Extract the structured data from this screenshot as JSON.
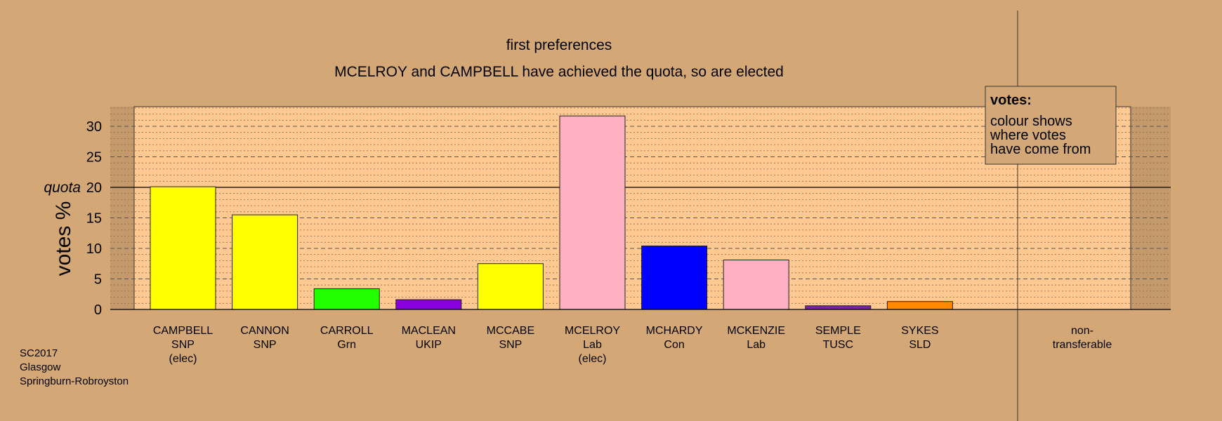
{
  "chart_data": {
    "type": "bar",
    "title": "first preferences",
    "subtitle": "MCELROY and CAMPBELL have achieved the quota, so are elected",
    "ylabel": "votes %",
    "ylim": [
      0,
      33.5
    ],
    "yticks": [
      0,
      5,
      10,
      15,
      20,
      25,
      30
    ],
    "quota": 20,
    "quota_label": "quota",
    "grid": true,
    "categories": [
      {
        "name": "CAMPBELL",
        "party": "SNP",
        "note": "(elec)",
        "value": 20.1,
        "color": "#ffff00"
      },
      {
        "name": "CANNON",
        "party": "SNP",
        "note": "",
        "value": 15.5,
        "color": "#ffff00"
      },
      {
        "name": "CARROLL",
        "party": "Grn",
        "note": "",
        "value": 3.4,
        "color": "#22ff00"
      },
      {
        "name": "MACLEAN",
        "party": "UKIP",
        "note": "",
        "value": 1.6,
        "color": "#8800dd"
      },
      {
        "name": "MCCABE",
        "party": "SNP",
        "note": "",
        "value": 7.5,
        "color": "#ffff00"
      },
      {
        "name": "MCELROY",
        "party": "Lab",
        "note": "(elec)",
        "value": 31.7,
        "color": "#ffb0c0"
      },
      {
        "name": "MCHARDY",
        "party": "Con",
        "note": "",
        "value": 10.4,
        "color": "#0000ff"
      },
      {
        "name": "MCKENZIE",
        "party": "Lab",
        "note": "",
        "value": 8.1,
        "color": "#ffb0c0"
      },
      {
        "name": "SEMPLE",
        "party": "TUSC",
        "note": "",
        "value": 0.6,
        "color": "#7a22aa"
      },
      {
        "name": "SYKES",
        "party": "SLD",
        "note": "",
        "value": 1.3,
        "color": "#ff8800"
      }
    ],
    "nontransferable_label": [
      "non-",
      "transferable"
    ],
    "legend": {
      "position": "top-right",
      "title": "votes:",
      "lines": [
        "colour shows",
        "where votes",
        "have come from"
      ]
    },
    "footer": [
      "SC2017",
      "Glasgow",
      "Springburn-Robroyston"
    ],
    "colors": {
      "background": "#d4a876",
      "plot_area": "#ffc991",
      "side_band": "#c49a6c"
    }
  }
}
